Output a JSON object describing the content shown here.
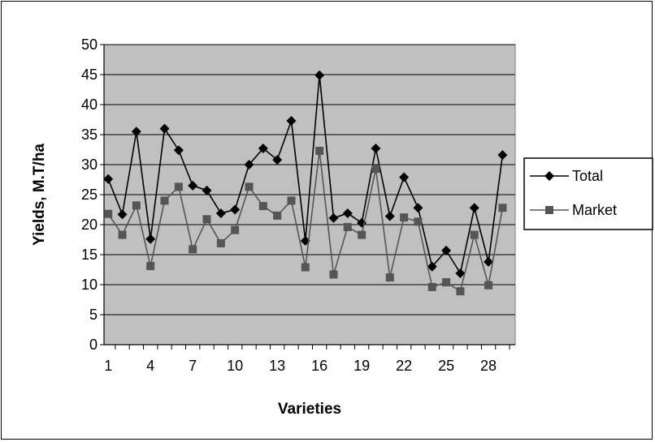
{
  "chart_data": {
    "type": "line",
    "title": "",
    "xlabel": "Varieties",
    "ylabel": "Yields, M.T/ha",
    "ylim": [
      0,
      50
    ],
    "yticks": [
      0,
      5,
      10,
      15,
      20,
      25,
      30,
      35,
      40,
      45,
      50
    ],
    "xlim": [
      1,
      29
    ],
    "xtick_labels": [
      "1",
      "4",
      "7",
      "10",
      "13",
      "16",
      "19",
      "22",
      "25",
      "28"
    ],
    "grid": "horizontal",
    "plot_background": "#c0c0c0",
    "legend_position": "right",
    "x": [
      1,
      2,
      3,
      4,
      5,
      6,
      7,
      8,
      9,
      10,
      11,
      12,
      13,
      14,
      15,
      16,
      17,
      18,
      19,
      20,
      21,
      22,
      23,
      24,
      25,
      26,
      27,
      28,
      29
    ],
    "series": [
      {
        "name": "Total",
        "marker": "diamond",
        "color": "#000000",
        "values": [
          27.6,
          21.7,
          35.5,
          17.6,
          36.0,
          32.4,
          26.5,
          25.7,
          21.9,
          22.5,
          30.0,
          32.7,
          30.8,
          37.3,
          17.3,
          44.9,
          21.1,
          21.9,
          20.3,
          32.7,
          21.4,
          27.9,
          22.8,
          13.0,
          15.7,
          11.9,
          22.8,
          13.8,
          31.6
        ]
      },
      {
        "name": "Market",
        "marker": "square",
        "color": "#555555",
        "values": [
          21.8,
          18.3,
          23.2,
          13.1,
          24.0,
          26.3,
          15.9,
          20.9,
          16.9,
          19.1,
          26.3,
          23.1,
          21.5,
          24.0,
          12.9,
          32.3,
          11.7,
          19.6,
          18.3,
          29.3,
          11.2,
          21.2,
          20.5,
          9.6,
          10.4,
          8.9,
          18.3,
          9.9,
          22.8
        ]
      }
    ]
  }
}
